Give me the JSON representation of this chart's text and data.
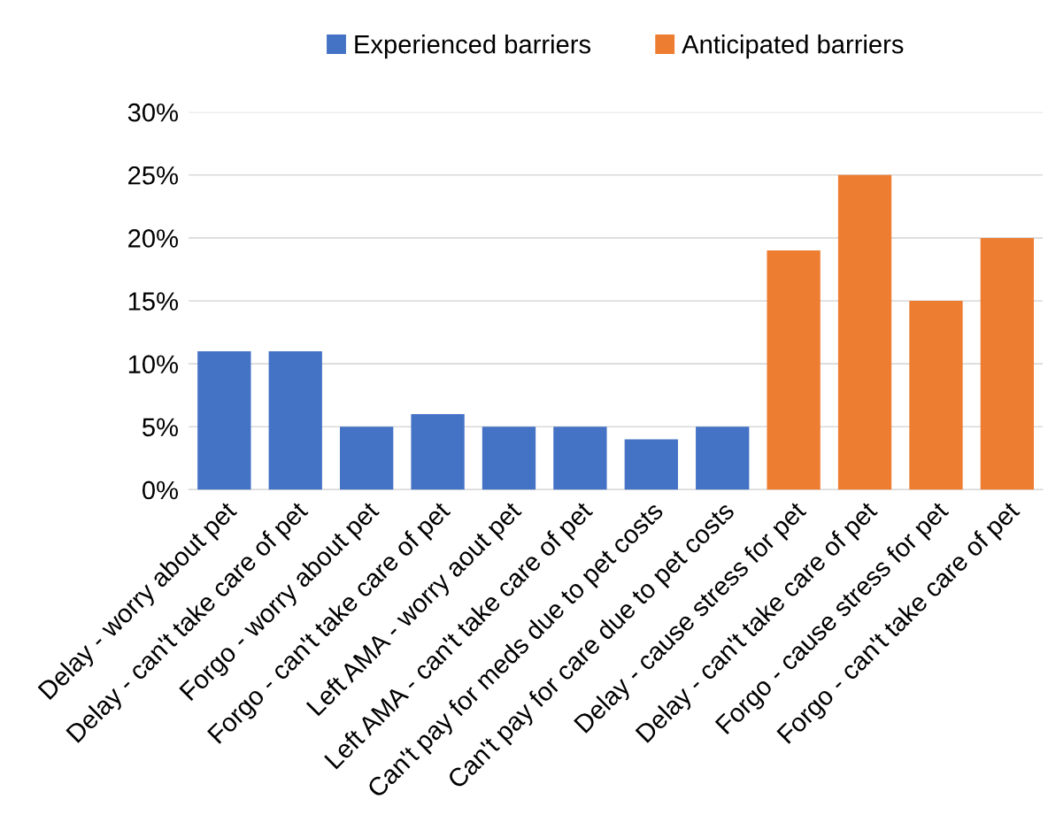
{
  "chart_data": {
    "type": "bar",
    "categories": [
      "Delay - worry about pet",
      "Delay - can't take care of pet",
      "Forgo - worry about pet",
      "Forgo - can't take care of pet",
      "Left AMA - worry aout pet",
      "Left AMA - can't take care of pet",
      "Can't pay for meds due to pet costs",
      "Can't pay for care due to pet costs",
      "Delay - cause stress for pet",
      "Delay - can't take care of pet",
      "Forgo - cause stress for pet",
      "Forgo - can't take care of pet"
    ],
    "series": [
      {
        "name": "Experienced barriers",
        "color": "#4472c4",
        "values": [
          11,
          11,
          5,
          6,
          5,
          5,
          4,
          5,
          null,
          null,
          null,
          null
        ]
      },
      {
        "name": "Anticipated barriers",
        "color": "#ed7d31",
        "values": [
          null,
          null,
          null,
          null,
          null,
          null,
          null,
          null,
          19,
          25,
          15,
          20
        ]
      }
    ],
    "ylim": [
      0,
      30
    ],
    "yticks": [
      {
        "value": 0,
        "label": "0%"
      },
      {
        "value": 5,
        "label": "5%"
      },
      {
        "value": 10,
        "label": "10%"
      },
      {
        "value": 15,
        "label": "15%"
      },
      {
        "value": 20,
        "label": "20%"
      },
      {
        "value": 25,
        "label": "25%"
      },
      {
        "value": 30,
        "label": "30%"
      }
    ],
    "grid": "y",
    "legend": "top"
  }
}
